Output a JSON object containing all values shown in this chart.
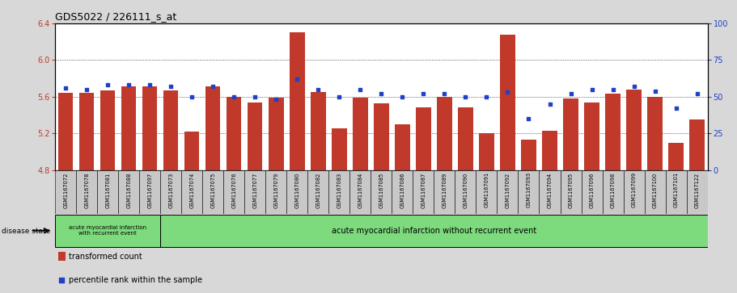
{
  "title": "GDS5022 / 226111_s_at",
  "samples": [
    "GSM1167072",
    "GSM1167078",
    "GSM1167081",
    "GSM1167088",
    "GSM1167097",
    "GSM1167073",
    "GSM1167074",
    "GSM1167075",
    "GSM1167076",
    "GSM1167077",
    "GSM1167079",
    "GSM1167080",
    "GSM1167082",
    "GSM1167083",
    "GSM1167084",
    "GSM1167085",
    "GSM1167086",
    "GSM1167087",
    "GSM1167089",
    "GSM1167090",
    "GSM1167091",
    "GSM1167092",
    "GSM1167093",
    "GSM1167094",
    "GSM1167095",
    "GSM1167096",
    "GSM1167098",
    "GSM1167099",
    "GSM1167100",
    "GSM1167101",
    "GSM1167122"
  ],
  "bar_values": [
    5.64,
    5.64,
    5.67,
    5.71,
    5.71,
    5.67,
    5.22,
    5.71,
    5.6,
    5.54,
    5.59,
    6.3,
    5.65,
    5.25,
    5.59,
    5.53,
    5.3,
    5.48,
    5.6,
    5.48,
    5.2,
    6.28,
    5.13,
    5.23,
    5.58,
    5.54,
    5.63,
    5.68,
    5.6,
    5.1,
    5.35
  ],
  "percentile_values": [
    56,
    55,
    58,
    58,
    58,
    57,
    50,
    57,
    50,
    50,
    48,
    62,
    55,
    50,
    55,
    52,
    50,
    52,
    52,
    50,
    50,
    53,
    35,
    45,
    52,
    55,
    55,
    57,
    54,
    42,
    52
  ],
  "bar_color": "#c0392b",
  "dot_color": "#2040c8",
  "ylim_left": [
    4.8,
    6.4
  ],
  "ylim_right": [
    0,
    100
  ],
  "yticks_left": [
    4.8,
    5.2,
    5.6,
    6.0,
    6.4
  ],
  "yticks_right": [
    0,
    25,
    50,
    75,
    100
  ],
  "grid_ticks": [
    5.2,
    5.6,
    6.0
  ],
  "disease_group1_label": "acute myocardial infarction\nwith recurrent event",
  "disease_group2_label": "acute myocardial infarction without recurrent event",
  "disease_group1_count": 5,
  "legend_bar_label": "transformed count",
  "legend_dot_label": "percentile rank within the sample",
  "disease_state_label": "disease state",
  "bg_color": "#d8d8d8",
  "plot_bg_color": "#ffffff",
  "group_bg_color": "#7dda7d",
  "xticklabel_bg": "#c8c8c8"
}
